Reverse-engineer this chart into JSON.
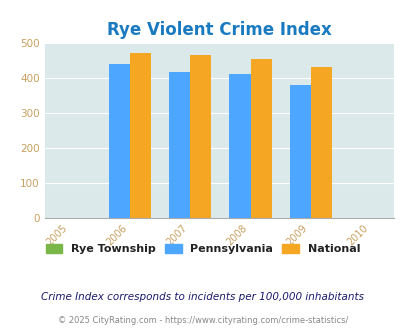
{
  "title": "Rye Violent Crime Index",
  "title_color": "#1a7abf",
  "years": [
    2006,
    2007,
    2008,
    2009
  ],
  "x_ticks": [
    2005,
    2006,
    2007,
    2008,
    2009,
    2010
  ],
  "rye_township": [
    0,
    0,
    0,
    0
  ],
  "pennsylvania": [
    440,
    418,
    410,
    380
  ],
  "national": [
    470,
    465,
    455,
    432
  ],
  "rye_color": "#7ab648",
  "pa_color": "#4da6ff",
  "nat_color": "#f5a623",
  "ylim": [
    0,
    500
  ],
  "yticks": [
    0,
    100,
    200,
    300,
    400,
    500
  ],
  "bg_color": "#dce9ea",
  "bar_width": 0.35,
  "legend_labels": [
    "Rye Township",
    "Pennsylvania",
    "National"
  ],
  "footnote": "Crime Index corresponds to incidents per 100,000 inhabitants",
  "copyright": "© 2025 CityRating.com - https://www.cityrating.com/crime-statistics/",
  "tick_color": "#c8a060",
  "footnote_color": "#1a1a6e",
  "copyright_color": "#888888",
  "grid_color": "#ffffff"
}
